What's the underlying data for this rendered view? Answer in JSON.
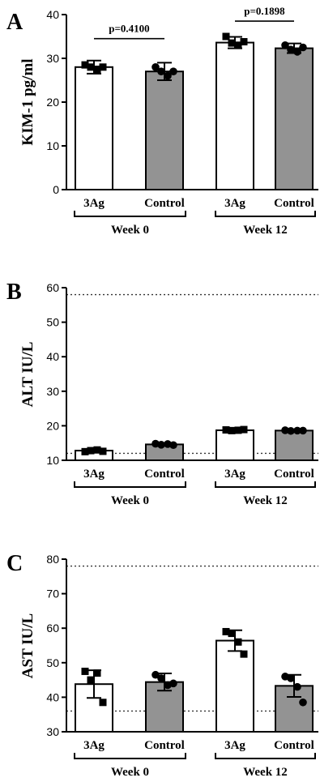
{
  "chart_data": [
    {
      "panel": "A",
      "type": "bar",
      "ylabel": "KIM-1 pg/ml",
      "ylim": [
        0,
        40
      ],
      "yticks": [
        0,
        10,
        20,
        30,
        40
      ],
      "categories": [
        "3Ag",
        "Control",
        "3Ag",
        "Control"
      ],
      "groups": [
        {
          "label": "Week 0",
          "categories": [
            0,
            1
          ]
        },
        {
          "label": "Week 12",
          "categories": [
            2,
            3
          ]
        }
      ],
      "values": [
        28.0,
        27.0,
        33.6,
        32.3
      ],
      "error": [
        1.5,
        2.0,
        1.3,
        1.1
      ],
      "points": [
        [
          28.5,
          28.0,
          27.5,
          28.0
        ],
        [
          28.0,
          27.0,
          26.0,
          27.0
        ],
        [
          35.0,
          33.5,
          33.0,
          33.8
        ],
        [
          33.0,
          32.0,
          31.5,
          32.5
        ]
      ],
      "fill": [
        "#ffffff",
        "#939393",
        "#ffffff",
        "#939393"
      ],
      "comparisons": [
        {
          "from": 0,
          "to": 1,
          "y": 34.5,
          "label": "p=0.4100"
        },
        {
          "from": 2,
          "to": 3,
          "y": 38.5,
          "label": "p=0.1898"
        }
      ],
      "reference_lines": []
    },
    {
      "panel": "B",
      "type": "bar",
      "ylabel": "ALT IU/L",
      "ylim": [
        10,
        60
      ],
      "yticks": [
        10,
        20,
        30,
        40,
        50,
        60
      ],
      "categories": [
        "3Ag",
        "Control",
        "3Ag",
        "Control"
      ],
      "groups": [
        {
          "label": "Week 0",
          "categories": [
            0,
            1
          ]
        },
        {
          "label": "Week 12",
          "categories": [
            2,
            3
          ]
        }
      ],
      "values": [
        12.8,
        14.6,
        18.7,
        18.6
      ],
      "error": [
        0.5,
        0.4,
        0.4,
        0.3
      ],
      "points": [
        [
          12.5,
          12.8,
          13.0,
          12.6
        ],
        [
          14.8,
          14.5,
          14.7,
          14.4
        ],
        [
          18.8,
          18.6,
          18.7,
          18.9
        ],
        [
          18.7,
          18.5,
          18.6,
          18.6
        ]
      ],
      "fill": [
        "#ffffff",
        "#939393",
        "#ffffff",
        "#939393"
      ],
      "comparisons": [],
      "reference_lines": [
        12,
        58
      ]
    },
    {
      "panel": "C",
      "type": "bar",
      "ylabel": "AST IU/L",
      "ylim": [
        30,
        80
      ],
      "yticks": [
        30,
        40,
        50,
        60,
        70,
        80
      ],
      "categories": [
        "3Ag",
        "Control",
        "3Ag",
        "Control"
      ],
      "groups": [
        {
          "label": "Week 0",
          "categories": [
            0,
            1
          ]
        },
        {
          "label": "Week 12",
          "categories": [
            2,
            3
          ]
        }
      ],
      "values": [
        43.8,
        44.4,
        56.4,
        43.3
      ],
      "error": [
        4.0,
        2.5,
        3.0,
        3.2
      ],
      "points": [
        [
          47.5,
          45.0,
          47.0,
          38.5
        ],
        [
          46.5,
          45.5,
          43.5,
          44.0
        ],
        [
          59.0,
          58.5,
          56.0,
          52.5
        ],
        [
          46.0,
          45.5,
          43.0,
          38.5
        ]
      ],
      "fill": [
        "#ffffff",
        "#939393",
        "#ffffff",
        "#939393"
      ],
      "comparisons": [],
      "reference_lines": [
        36,
        78
      ]
    }
  ]
}
